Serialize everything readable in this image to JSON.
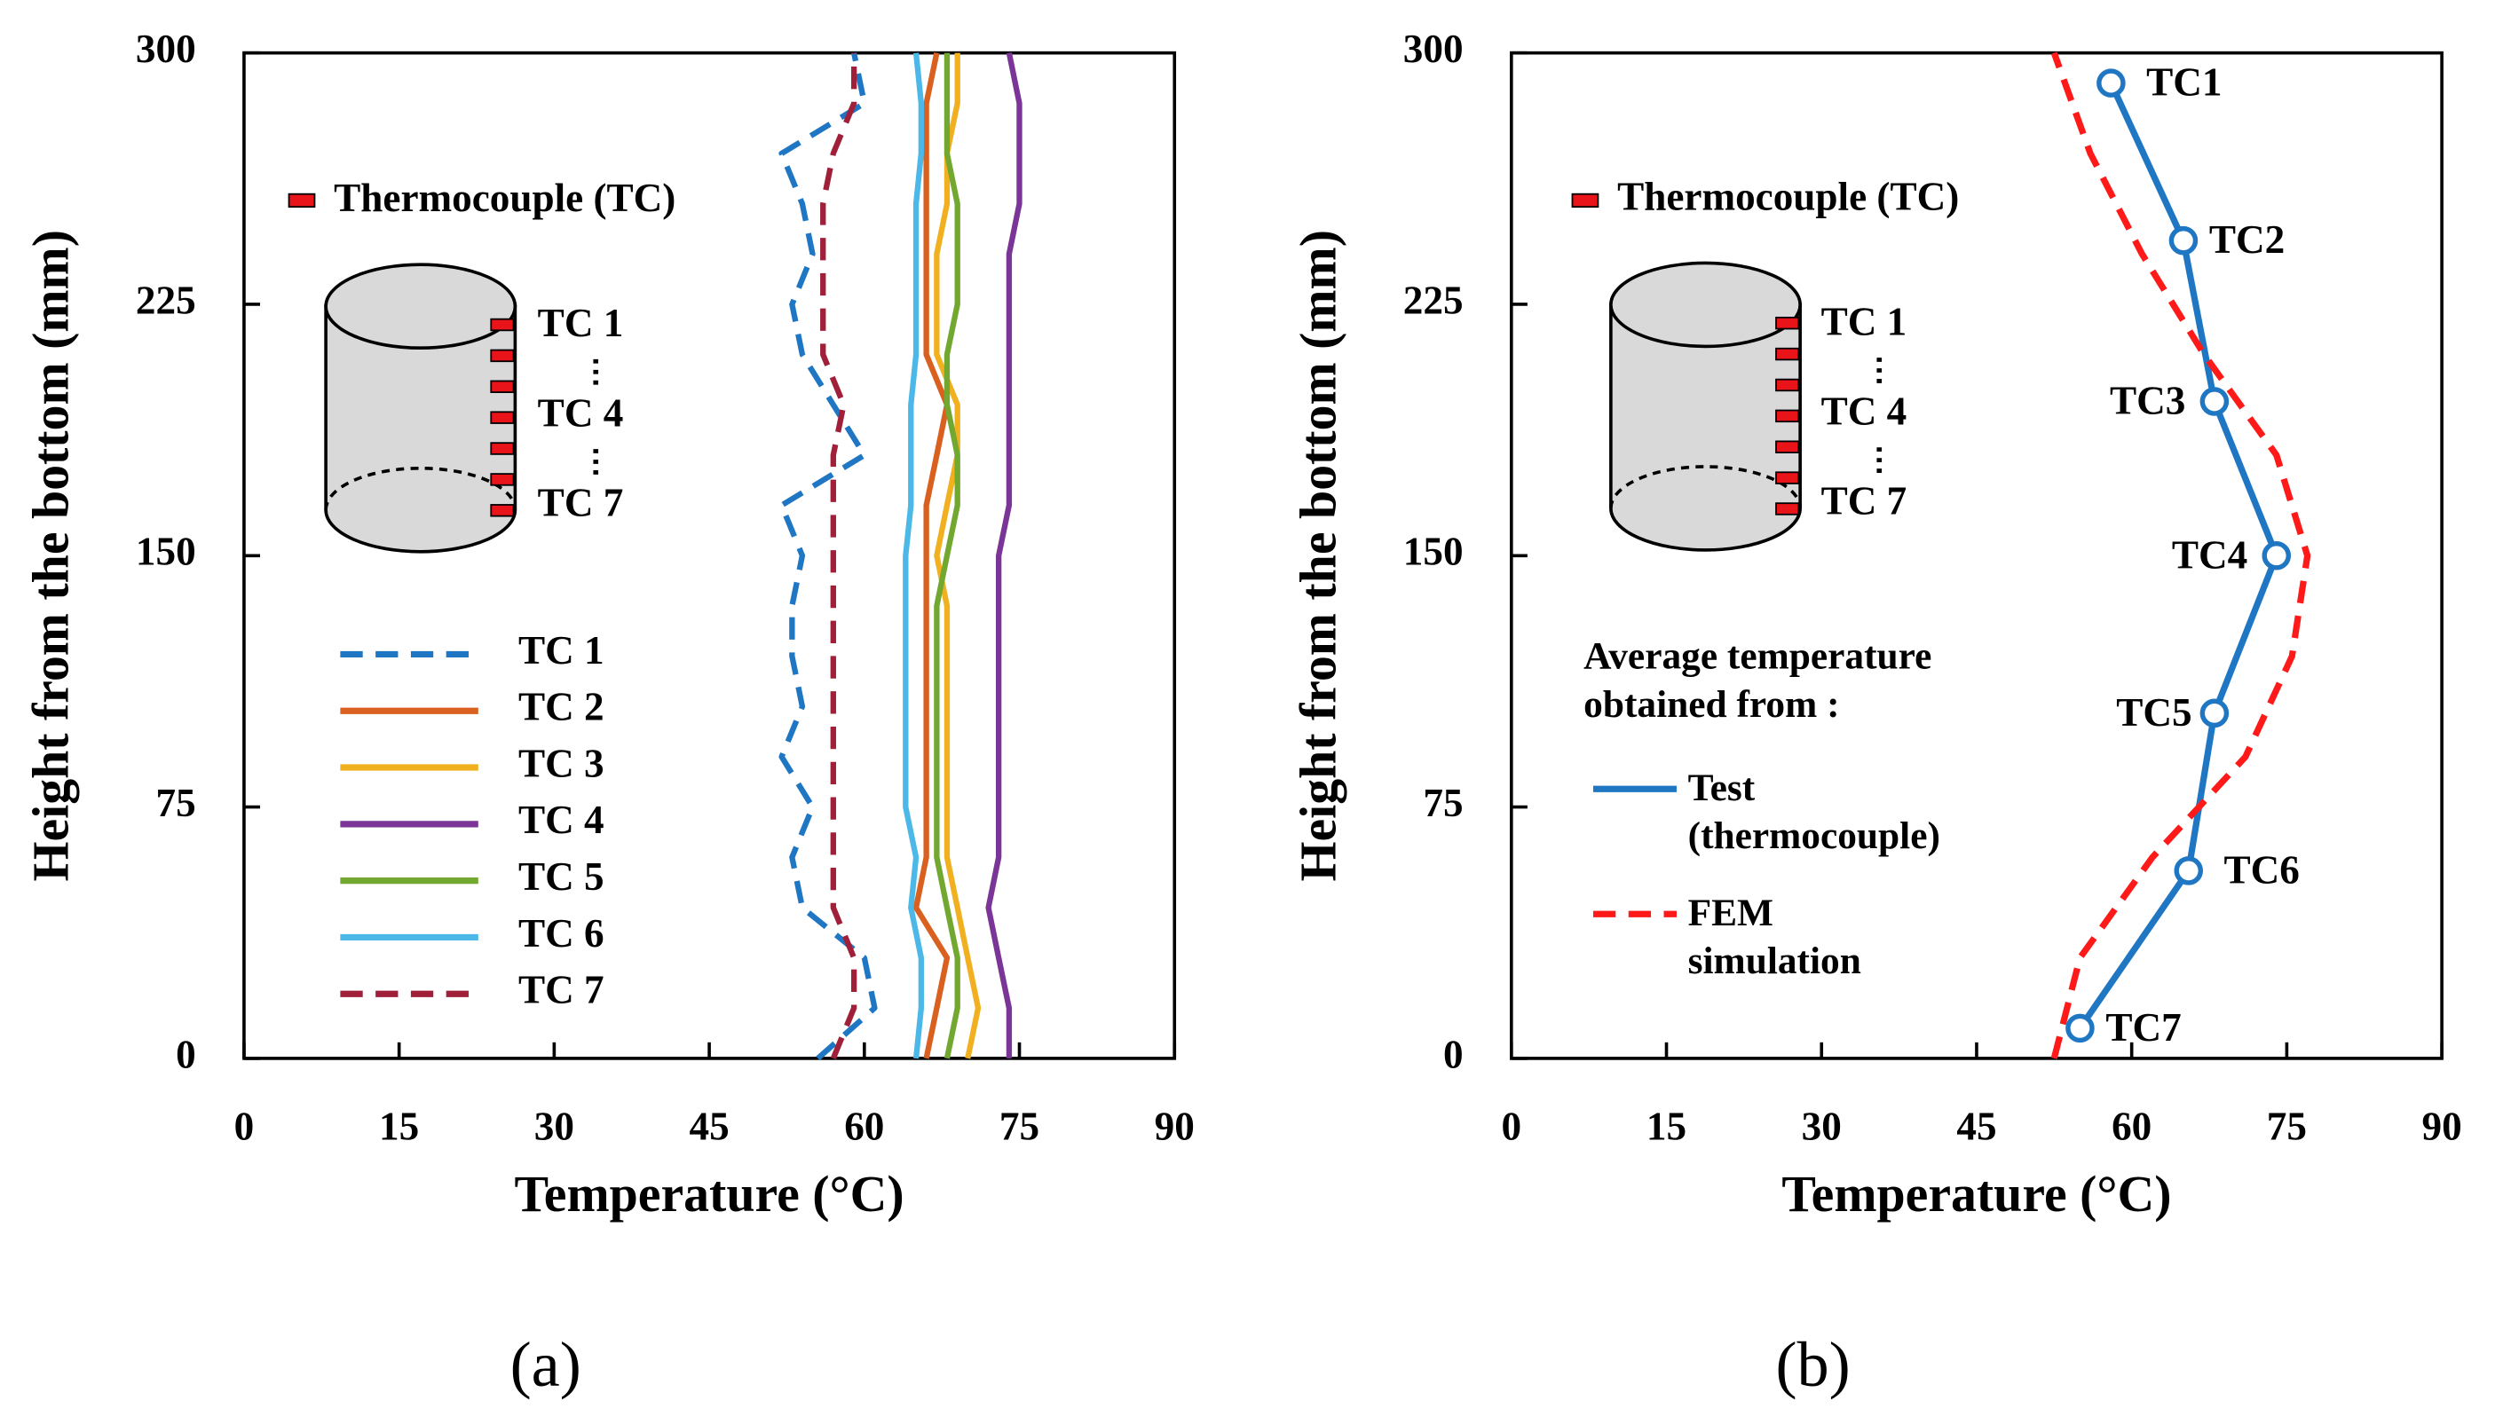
{
  "chart_data": [
    {
      "type": "line",
      "label": "(a)",
      "x_label": "Temperature (°C)",
      "y_label": "Height from the bottom (mm)",
      "xlim": [
        0,
        90
      ],
      "xticks": [
        0,
        15,
        30,
        45,
        60,
        75,
        90
      ],
      "ylim": [
        0,
        300
      ],
      "yticks": [
        0,
        75,
        150,
        225,
        300
      ],
      "annotations": [
        "Thermocouple (TC)",
        "TC 1",
        "TC 4",
        "TC 7"
      ],
      "y": [
        0,
        15,
        30,
        45,
        60,
        75,
        90,
        105,
        120,
        135,
        150,
        165,
        180,
        195,
        210,
        225,
        240,
        255,
        270,
        285,
        300
      ],
      "series": [
        {
          "name": "TC 1",
          "color": "#1f77c4",
          "dash": true,
          "values": [
            55.5,
            61,
            60,
            54,
            53,
            55,
            52,
            54,
            53,
            53,
            54,
            52,
            60,
            57,
            54,
            53,
            55,
            54,
            52,
            60,
            59
          ]
        },
        {
          "name": "TC 2",
          "color": "#d9601e",
          "values": [
            66,
            67,
            68,
            65,
            66,
            66,
            66,
            66,
            66,
            66,
            66,
            66,
            67,
            68,
            66,
            66,
            66,
            66,
            66,
            66,
            67
          ]
        },
        {
          "name": "TC 3",
          "color": "#f0b020",
          "values": [
            70,
            71,
            70,
            69,
            68,
            68,
            68,
            68,
            68,
            68,
            67,
            68,
            69,
            69,
            67,
            67,
            67,
            68,
            68,
            69,
            69
          ]
        },
        {
          "name": "TC 4",
          "color": "#7b3596",
          "values": [
            74,
            74,
            73,
            72,
            73,
            73,
            73,
            73,
            73,
            73,
            73,
            74,
            74,
            74,
            74,
            74,
            74,
            75,
            75,
            75,
            74
          ]
        },
        {
          "name": "TC 5",
          "color": "#72a830",
          "values": [
            68,
            69,
            69,
            68,
            67,
            67,
            67,
            67,
            67,
            67,
            68,
            69,
            69,
            68,
            68,
            69,
            69,
            69,
            68,
            68,
            68
          ]
        },
        {
          "name": "TC 6",
          "color": "#4cb8e8",
          "values": [
            65,
            65.5,
            65.5,
            64.5,
            65,
            64,
            64,
            64,
            64,
            64,
            64,
            64.5,
            64.5,
            64.5,
            65,
            65,
            65,
            65,
            65.5,
            65.5,
            65
          ]
        },
        {
          "name": "TC 7",
          "color": "#a0203a",
          "dash": true,
          "values": [
            57,
            59,
            59,
            57,
            57,
            57,
            57,
            57,
            57,
            57,
            57,
            57,
            57,
            58,
            56,
            56,
            56,
            56,
            57,
            59,
            59
          ]
        }
      ]
    },
    {
      "type": "line",
      "label": "(b)",
      "x_label": "Temperature (°C)",
      "y_label": "Height from the bottom (mm)",
      "xlim": [
        0,
        90
      ],
      "xticks": [
        0,
        15,
        30,
        45,
        60,
        75,
        90
      ],
      "ylim": [
        0,
        300
      ],
      "yticks": [
        0,
        75,
        150,
        225,
        300
      ],
      "annotations": [
        "Thermocouple (TC)",
        "TC 1",
        "TC 4",
        "TC 7"
      ],
      "legend_title": "Average temperature obtained from :",
      "series": [
        {
          "name": "Test (thermocouple)",
          "color": "#1f77c4",
          "markers": true,
          "y": [
            291,
            244,
            196,
            150,
            103,
            56,
            9
          ],
          "values": [
            58,
            65,
            68,
            74,
            68,
            65.5,
            55
          ],
          "point_labels": [
            "TC1",
            "TC2",
            "TC3",
            "TC4",
            "TC5",
            "TC6",
            "TC7"
          ]
        },
        {
          "name": "FEM simulation",
          "color": "#ff1a1a",
          "dash": true,
          "y": [
            0,
            30,
            60,
            90,
            120,
            150,
            180,
            210,
            240,
            270,
            300
          ],
          "values": [
            52.5,
            55,
            62,
            71,
            75.5,
            77,
            74,
            67,
            61,
            56,
            52.5
          ]
        }
      ]
    }
  ]
}
